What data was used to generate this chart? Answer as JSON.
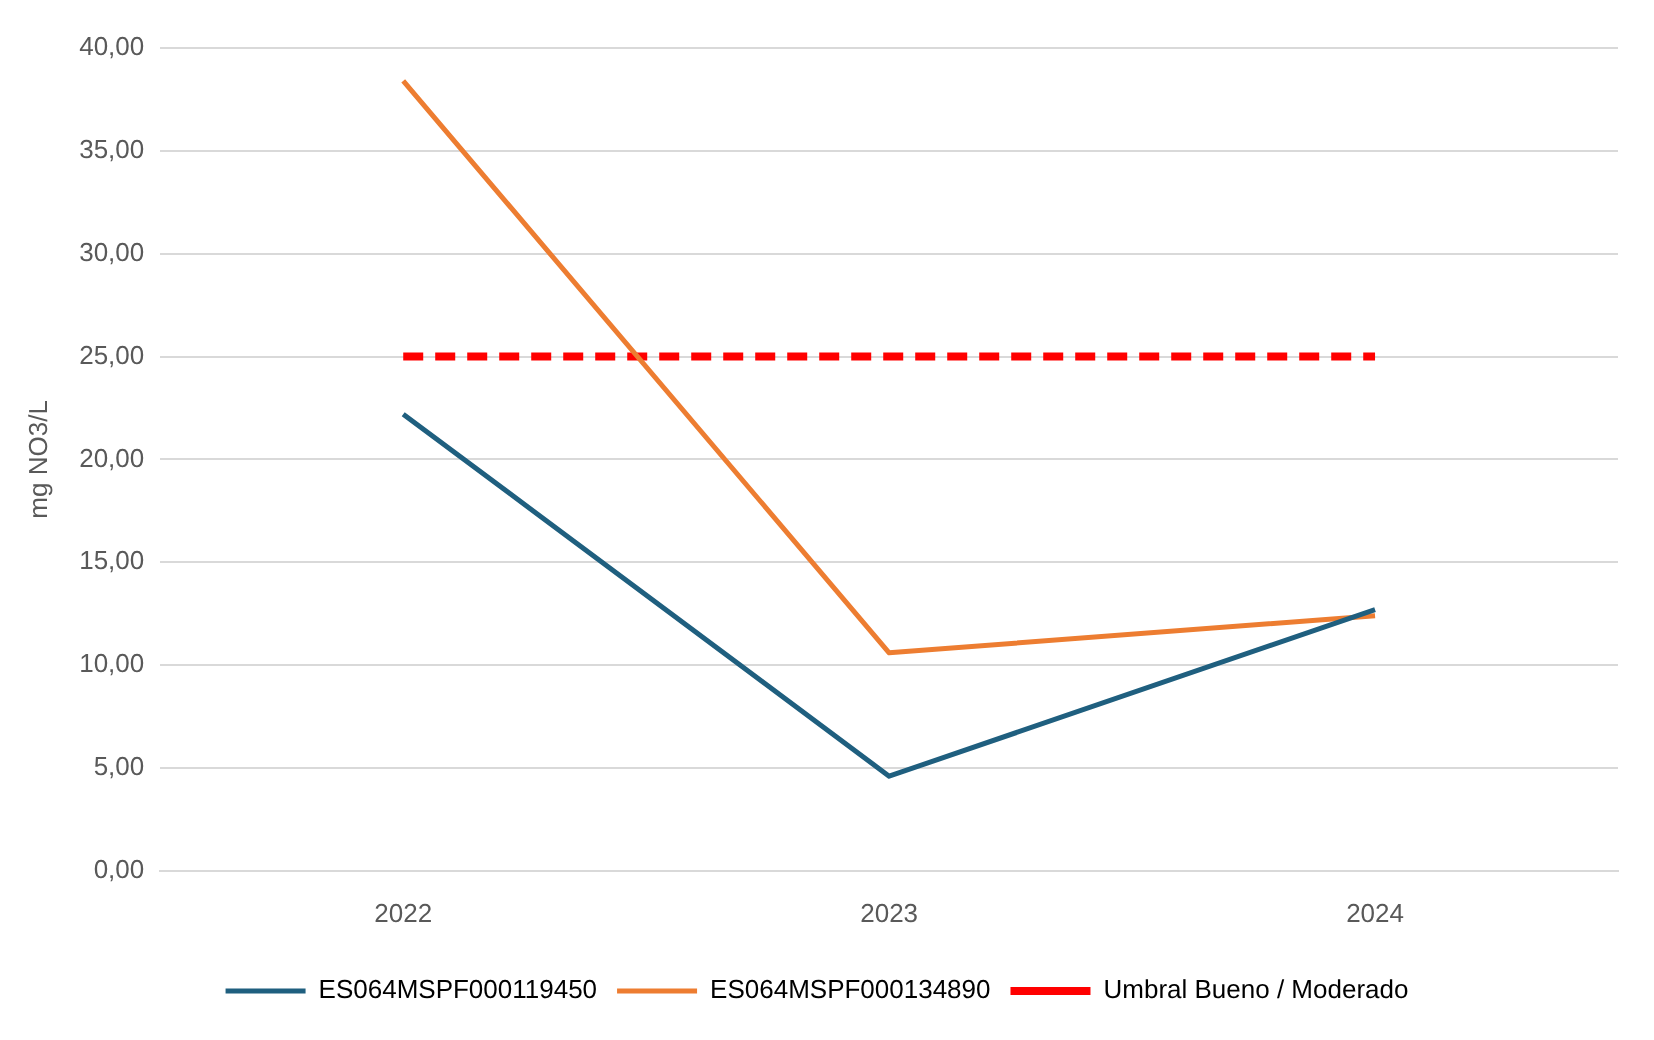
{
  "chart_data": {
    "type": "line",
    "ylabel": "mg NO3/L",
    "categories": [
      "2022",
      "2023",
      "2024"
    ],
    "series": [
      {
        "name": "ES064MSPF000119450",
        "color": "#1f5f7f",
        "values": [
          22.2,
          4.6,
          12.7
        ]
      },
      {
        "name": "ES064MSPF000134890",
        "color": "#ed7d31",
        "values": [
          38.4,
          10.6,
          12.4
        ]
      },
      {
        "name": "Umbral Bueno / Moderado",
        "color": "#ff0000",
        "values": [
          25,
          25,
          25
        ],
        "line_style": "dashed"
      }
    ],
    "ylim": [
      0,
      40
    ],
    "yticks": [
      {
        "value": 0,
        "label": "0,00"
      },
      {
        "value": 5,
        "label": "5,00"
      },
      {
        "value": 10,
        "label": "10,00"
      },
      {
        "value": 15,
        "label": "15,00"
      },
      {
        "value": 20,
        "label": "20,00"
      },
      {
        "value": 25,
        "label": "25,00"
      },
      {
        "value": 30,
        "label": "30,00"
      },
      {
        "value": 35,
        "label": "35,00"
      },
      {
        "value": 40,
        "label": "40,00"
      }
    ],
    "grid": "y",
    "legend": "bottom",
    "marker": "none"
  }
}
